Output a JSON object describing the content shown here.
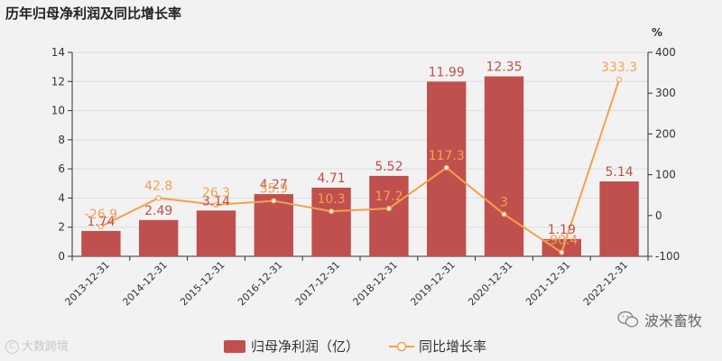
{
  "title": "历年归母净利润及同比增长率",
  "watermark_left": "大数跨境",
  "watermark_left_symbol": "C",
  "watermark_right": "波米畜牧",
  "colors": {
    "bar": "#c0504d",
    "line": "#f5a04e",
    "axis": "#333333",
    "grid": "#dddddd",
    "background": "#f2f2f2"
  },
  "chart_data": {
    "type": "bar",
    "categories": [
      "2013-12-31",
      "2014-12-31",
      "2015-12-31",
      "2016-12-31",
      "2017-12-31",
      "2018-12-31",
      "2019-12-31",
      "2020-12-31",
      "2021-12-31",
      "2022-12-31"
    ],
    "series": [
      {
        "name": "归母净利润（亿）",
        "type": "bar",
        "axis": "left",
        "values": [
          1.74,
          2.49,
          3.14,
          4.27,
          4.71,
          5.52,
          11.99,
          12.35,
          1.19,
          5.14
        ]
      },
      {
        "name": "同比增长率",
        "type": "line",
        "axis": "right",
        "values": [
          -26.9,
          42.8,
          26.3,
          35.9,
          10.3,
          17.2,
          117.3,
          3,
          -90.4,
          333.3
        ]
      }
    ],
    "y_left": {
      "ylim": [
        0,
        14
      ],
      "ticks": [
        0,
        2,
        4,
        6,
        8,
        10,
        12,
        14
      ]
    },
    "y_right": {
      "ylabel": "%",
      "ylim": [
        -100,
        400
      ],
      "ticks": [
        -100,
        0,
        100,
        200,
        300,
        400
      ]
    },
    "grid": true,
    "legend_position": "bottom"
  }
}
